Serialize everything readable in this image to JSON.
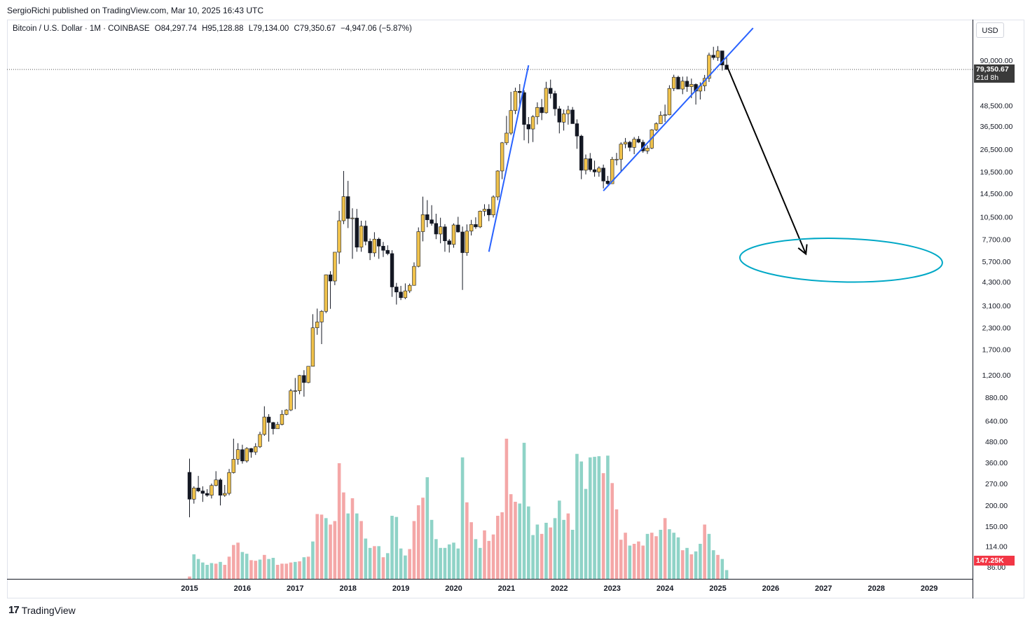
{
  "header": {
    "published": "SergioRichi published on TradingView.com, Mar 10, 2025 16:43 UTC"
  },
  "legend": {
    "symbol": "Bitcoin / U.S. Dollar · 1M · COINBASE",
    "open": "O84,297.74",
    "high": "H95,128.88",
    "low": "L79,134.00",
    "close": "C79,350.67",
    "change": "−4,947.06 (−5.87%)"
  },
  "currency_button": "USD",
  "price_tag": {
    "price": "79,350.67",
    "countdown": "21d 8h"
  },
  "volume_tag": "147.25K",
  "footer": {
    "brand": "TradingView",
    "logo": "17"
  },
  "colors": {
    "up": "#f0c24b",
    "down": "#131722",
    "vol_up": "#8fd3c7",
    "vol_down": "#f4a7a7",
    "trendline": "#2962ff",
    "ellipse": "#00a8c6",
    "arrow": "#000000",
    "price_tag": "#3a3a3a",
    "volume_tag": "#f23645"
  },
  "chart_data": {
    "type": "candlestick",
    "symbol": "BTCUSD",
    "interval": "1M",
    "scale": "log",
    "y_ticks": [
      90000,
      48500,
      36500,
      26500,
      19500,
      14500,
      10500,
      7700,
      5700,
      4300,
      3100,
      2300,
      1700,
      1200,
      880,
      640,
      480,
      360,
      270,
      200,
      150,
      114,
      86
    ],
    "y_tick_labels": [
      "90,000.00",
      "48,500.00",
      "36,500.00",
      "26,500.00",
      "19,500.00",
      "14,500.00",
      "10,500.00",
      "7,700.00",
      "5,700.00",
      "4,300.00",
      "3,100.00",
      "2,300.00",
      "1,700.00",
      "1,200.00",
      "880.00",
      "640.00",
      "480.00",
      "360.00",
      "270.00",
      "200.00",
      "150.00",
      "114.00",
      "86.00"
    ],
    "x_ticks": [
      "2015",
      "2016",
      "2017",
      "2018",
      "2019",
      "2020",
      "2021",
      "2022",
      "2023",
      "2024",
      "2025",
      "2026",
      "2027",
      "2028",
      "2029"
    ],
    "start": "2015-01",
    "candles": [
      [
        315,
        380,
        170,
        218
      ],
      [
        218,
        260,
        205,
        254
      ],
      [
        254,
        300,
        240,
        244
      ],
      [
        244,
        260,
        210,
        236
      ],
      [
        236,
        250,
        225,
        230
      ],
      [
        230,
        270,
        220,
        263
      ],
      [
        263,
        320,
        260,
        284
      ],
      [
        284,
        290,
        200,
        230
      ],
      [
        230,
        265,
        225,
        236
      ],
      [
        236,
        330,
        230,
        314
      ],
      [
        314,
        500,
        310,
        377
      ],
      [
        377,
        470,
        350,
        430
      ],
      [
        430,
        460,
        355,
        368
      ],
      [
        368,
        445,
        360,
        437
      ],
      [
        437,
        440,
        385,
        416
      ],
      [
        416,
        470,
        400,
        448
      ],
      [
        448,
        550,
        440,
        530
      ],
      [
        530,
        780,
        520,
        673
      ],
      [
        673,
        700,
        480,
        624
      ],
      [
        624,
        630,
        530,
        573
      ],
      [
        573,
        630,
        590,
        608
      ],
      [
        608,
        740,
        600,
        698
      ],
      [
        698,
        750,
        690,
        741
      ],
      [
        741,
        990,
        730,
        964
      ],
      [
        964,
        1150,
        750,
        965
      ],
      [
        965,
        1200,
        920,
        1190
      ],
      [
        1190,
        1280,
        890,
        1080
      ],
      [
        1080,
        1350,
        1070,
        1350
      ],
      [
        1350,
        2760,
        1350,
        2290
      ],
      [
        2290,
        2980,
        2080,
        2480
      ],
      [
        2480,
        2920,
        1830,
        2870
      ],
      [
        2870,
        4760,
        2800,
        4740
      ],
      [
        4740,
        4980,
        2970,
        4350
      ],
      [
        4350,
        6470,
        4110,
        6460
      ],
      [
        6460,
        11400,
        5500,
        9950
      ],
      [
        9950,
        19700,
        9500,
        13860
      ],
      [
        13860,
        17200,
        9000,
        10260
      ],
      [
        10260,
        11800,
        5900,
        10330
      ],
      [
        10330,
        11700,
        6500,
        6920
      ],
      [
        6920,
        9950,
        6500,
        9250
      ],
      [
        9250,
        9970,
        7100,
        7500
      ],
      [
        7500,
        7790,
        5800,
        6400
      ],
      [
        6400,
        8500,
        6070,
        7730
      ],
      [
        7730,
        7900,
        5900,
        7020
      ],
      [
        7020,
        7440,
        6050,
        6630
      ],
      [
        6630,
        7100,
        6200,
        6340
      ],
      [
        6340,
        6640,
        3500,
        4010
      ],
      [
        4010,
        4240,
        3150,
        3740
      ],
      [
        3740,
        4070,
        3350,
        3460
      ],
      [
        3460,
        4210,
        3390,
        3800
      ],
      [
        3800,
        4200,
        3690,
        4100
      ],
      [
        4100,
        5620,
        4080,
        5320
      ],
      [
        5320,
        9080,
        5250,
        8570
      ],
      [
        8570,
        13850,
        7500,
        10820
      ],
      [
        10820,
        13200,
        9100,
        10080
      ],
      [
        10080,
        12320,
        9300,
        9590
      ],
      [
        9590,
        10950,
        7730,
        8290
      ],
      [
        8290,
        10370,
        7300,
        9150
      ],
      [
        9150,
        9500,
        6500,
        7550
      ],
      [
        7550,
        7750,
        6430,
        7190
      ],
      [
        7190,
        9600,
        6870,
        9390
      ],
      [
        9390,
        10500,
        8460,
        8530
      ],
      [
        8530,
        9190,
        3850,
        6420
      ],
      [
        6420,
        9460,
        6150,
        8630
      ],
      [
        8630,
        10070,
        8130,
        9450
      ],
      [
        9450,
        10430,
        8900,
        9140
      ],
      [
        9140,
        11450,
        9000,
        11340
      ],
      [
        11340,
        12480,
        10600,
        11660
      ],
      [
        11660,
        12480,
        9900,
        10780
      ],
      [
        10780,
        14100,
        10400,
        13800
      ],
      [
        13800,
        19900,
        13200,
        19700
      ],
      [
        19700,
        29300,
        17600,
        28990
      ],
      [
        28990,
        41950,
        28130,
        33110
      ],
      [
        33110,
        58350,
        32300,
        45160
      ],
      [
        45160,
        61780,
        43000,
        58800
      ],
      [
        58800,
        64900,
        47000,
        57750
      ],
      [
        57750,
        59500,
        30000,
        37300
      ],
      [
        37300,
        41300,
        28800,
        35040
      ],
      [
        35040,
        42400,
        29300,
        41460
      ],
      [
        41460,
        50500,
        37300,
        47100
      ],
      [
        47100,
        52900,
        39600,
        43800
      ],
      [
        43800,
        67000,
        43300,
        61300
      ],
      [
        61300,
        69000,
        53300,
        57000
      ],
      [
        57000,
        59200,
        42000,
        46200
      ],
      [
        46200,
        48000,
        33000,
        38500
      ],
      [
        38500,
        45800,
        34300,
        43200
      ],
      [
        43200,
        48200,
        37200,
        45500
      ],
      [
        45500,
        47400,
        38500,
        37700
      ],
      [
        37700,
        40000,
        26700,
        31800
      ],
      [
        31800,
        32400,
        17600,
        19900
      ],
      [
        19900,
        24700,
        18800,
        23300
      ],
      [
        23300,
        25200,
        19500,
        20050
      ],
      [
        20050,
        22700,
        18200,
        19430
      ],
      [
        19430,
        21000,
        18200,
        20500
      ],
      [
        20500,
        21500,
        15500,
        17160
      ],
      [
        17160,
        18400,
        16300,
        16540
      ],
      [
        16540,
        23900,
        16500,
        23130
      ],
      [
        23130,
        25250,
        21300,
        23140
      ],
      [
        23140,
        29200,
        19600,
        28480
      ],
      [
        28480,
        30980,
        26900,
        29230
      ],
      [
        29230,
        29800,
        25800,
        27220
      ],
      [
        27220,
        31400,
        24800,
        30470
      ],
      [
        30470,
        31800,
        28860,
        29230
      ],
      [
        29230,
        30200,
        25300,
        25940
      ],
      [
        25940,
        28000,
        24900,
        26970
      ],
      [
        26970,
        35000,
        26600,
        34660
      ],
      [
        34660,
        38400,
        34100,
        37720
      ],
      [
        37720,
        44700,
        37600,
        42280
      ],
      [
        42280,
        48970,
        38550,
        42580
      ],
      [
        42580,
        63900,
        42300,
        61130
      ],
      [
        61130,
        73800,
        59000,
        71330
      ],
      [
        71330,
        72800,
        60800,
        60640
      ],
      [
        60640,
        71900,
        56500,
        67530
      ],
      [
        67530,
        72000,
        58400,
        62680
      ],
      [
        62680,
        70000,
        53500,
        64620
      ],
      [
        64620,
        65500,
        49000,
        58970
      ],
      [
        58970,
        66500,
        52550,
        63330
      ],
      [
        63330,
        73600,
        58900,
        70210
      ],
      [
        70210,
        99800,
        66800,
        96450
      ],
      [
        96450,
        108300,
        90500,
        93430
      ],
      [
        93430,
        109400,
        89250,
        102430
      ],
      [
        102430,
        102500,
        78200,
        84300
      ],
      [
        84300,
        95130,
        79130,
        79350
      ]
    ],
    "volume": [
      [
        0.4,
        0
      ],
      [
        4.2,
        1
      ],
      [
        3.4,
        1
      ],
      [
        2.8,
        1
      ],
      [
        2.4,
        1
      ],
      [
        2.7,
        1
      ],
      [
        2.6,
        0
      ],
      [
        2.9,
        1
      ],
      [
        2.4,
        0
      ],
      [
        3.8,
        0
      ],
      [
        5.8,
        0
      ],
      [
        6.2,
        0
      ],
      [
        4.6,
        1
      ],
      [
        4.3,
        1
      ],
      [
        3.2,
        0
      ],
      [
        3.1,
        0
      ],
      [
        3.3,
        1
      ],
      [
        4.1,
        0
      ],
      [
        3.4,
        1
      ],
      [
        3.6,
        1
      ],
      [
        2.4,
        0
      ],
      [
        2.6,
        0
      ],
      [
        2.6,
        0
      ],
      [
        2.8,
        0
      ],
      [
        2.9,
        1
      ],
      [
        3.0,
        0
      ],
      [
        3.7,
        1
      ],
      [
        3.8,
        0
      ],
      [
        6.4,
        1
      ],
      [
        11.1,
        0
      ],
      [
        11.0,
        0
      ],
      [
        10.4,
        1
      ],
      [
        9.3,
        0
      ],
      [
        9.9,
        0
      ],
      [
        19.8,
        0
      ],
      [
        14.8,
        0
      ],
      [
        11.2,
        1
      ],
      [
        13.8,
        0
      ],
      [
        11.2,
        1
      ],
      [
        9.9,
        0
      ],
      [
        6.9,
        1
      ],
      [
        5.3,
        1
      ],
      [
        5.6,
        0
      ],
      [
        5.6,
        1
      ],
      [
        3.7,
        0
      ],
      [
        4.4,
        1
      ],
      [
        10.8,
        1
      ],
      [
        10.6,
        1
      ],
      [
        5.2,
        1
      ],
      [
        4.0,
        1
      ],
      [
        5.1,
        0
      ],
      [
        9.9,
        0
      ],
      [
        12.6,
        0
      ],
      [
        13.9,
        0
      ],
      [
        17.4,
        1
      ],
      [
        10.1,
        1
      ],
      [
        6.8,
        1
      ],
      [
        5.3,
        1
      ],
      [
        5.3,
        1
      ],
      [
        5.9,
        1
      ],
      [
        6.2,
        1
      ],
      [
        5.2,
        1
      ],
      [
        20.8,
        1
      ],
      [
        13.1,
        0
      ],
      [
        9.7,
        0
      ],
      [
        6.8,
        1
      ],
      [
        5.3,
        1
      ],
      [
        8.3,
        0
      ],
      [
        6.5,
        0
      ],
      [
        7.6,
        0
      ],
      [
        10.8,
        0
      ],
      [
        11.4,
        0
      ],
      [
        24.0,
        0
      ],
      [
        14.5,
        0
      ],
      [
        13.2,
        0
      ],
      [
        12.9,
        1
      ],
      [
        23.3,
        1
      ],
      [
        12.4,
        1
      ],
      [
        7.5,
        1
      ],
      [
        9.3,
        1
      ],
      [
        7.7,
        0
      ],
      [
        9.6,
        1
      ],
      [
        8.8,
        0
      ],
      [
        10.4,
        1
      ],
      [
        13.4,
        1
      ],
      [
        10.1,
        1
      ],
      [
        11.2,
        0
      ],
      [
        8.4,
        1
      ],
      [
        21.4,
        1
      ],
      [
        20.1,
        1
      ],
      [
        15.4,
        1
      ],
      [
        20.8,
        1
      ],
      [
        20.9,
        1
      ],
      [
        21.0,
        1
      ],
      [
        18.1,
        0
      ],
      [
        21.1,
        1
      ],
      [
        16.4,
        0
      ],
      [
        11.9,
        0
      ],
      [
        6.7,
        0
      ],
      [
        7.9,
        0
      ],
      [
        5.7,
        1
      ],
      [
        6.0,
        0
      ],
      [
        6.4,
        0
      ],
      [
        5.7,
        0
      ],
      [
        7.7,
        1
      ],
      [
        7.9,
        0
      ],
      [
        7.3,
        0
      ],
      [
        8.4,
        1
      ],
      [
        10.4,
        0
      ],
      [
        8.5,
        1
      ],
      [
        7.9,
        1
      ],
      [
        7.1,
        1
      ],
      [
        4.9,
        0
      ],
      [
        5.3,
        1
      ],
      [
        4.2,
        0
      ],
      [
        4.7,
        1
      ],
      [
        6.0,
        1
      ],
      [
        9.3,
        0
      ],
      [
        7.7,
        1
      ],
      [
        4.9,
        1
      ],
      [
        4.1,
        0
      ],
      [
        3.4,
        1
      ],
      [
        1.5,
        1
      ]
    ]
  },
  "drawings": {
    "trendline_2021": {
      "from": [
        "2020-09",
        6500
      ],
      "to": [
        "2021-06",
        84000
      ]
    },
    "trendline_2023": {
      "from": [
        "2022-11",
        15000
      ],
      "to": [
        "2025-09",
        140000
      ]
    },
    "arrow": {
      "from": [
        "2025-03",
        84000
      ],
      "to": [
        "2026-09",
        6300
      ]
    },
    "target_zone": {
      "center": [
        "2026-09",
        5800
      ],
      "price_range": [
        4300,
        7800
      ],
      "time_range": [
        "2025-06",
        "2029-04"
      ]
    }
  }
}
